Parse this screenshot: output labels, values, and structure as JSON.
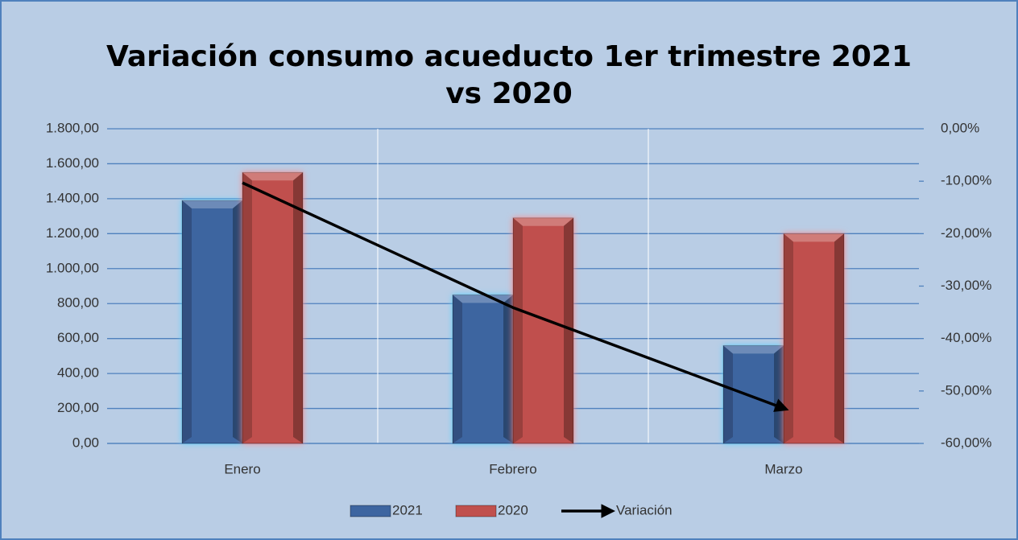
{
  "chart_data": {
    "type": "bar",
    "title": "Variación consumo acueducto 1er trimestre 2021 vs 2020",
    "categories": [
      "Enero",
      "Febrero",
      "Marzo"
    ],
    "series": [
      {
        "name": "2021",
        "color": "#3d65a0",
        "values": [
          1390,
          850,
          560
        ]
      },
      {
        "name": "2020",
        "color": "#c0504d",
        "values": [
          1550,
          1290,
          1200
        ]
      },
      {
        "name": "Variación",
        "type": "line",
        "axis": "y2",
        "color": "#000000",
        "values": [
          -10.3,
          -34.1,
          -53.3
        ]
      }
    ],
    "ylim": [
      0,
      1800
    ],
    "yticks": [
      {
        "value": 0,
        "label": "0,00"
      },
      {
        "value": 200,
        "label": "200,00"
      },
      {
        "value": 400,
        "label": "400,00"
      },
      {
        "value": 600,
        "label": "600,00"
      },
      {
        "value": 800,
        "label": "800,00"
      },
      {
        "value": 1000,
        "label": "1.000,00"
      },
      {
        "value": 1200,
        "label": "1.200,00"
      },
      {
        "value": 1400,
        "label": "1.400,00"
      },
      {
        "value": 1600,
        "label": "1.600,00"
      },
      {
        "value": 1800,
        "label": "1.800,00"
      }
    ],
    "y2lim": [
      -60,
      0
    ],
    "y2ticks": [
      {
        "value": 0,
        "label": "0,00%"
      },
      {
        "value": -10,
        "label": "-10,00%"
      },
      {
        "value": -20,
        "label": "-20,00%"
      },
      {
        "value": -30,
        "label": "-30,00%"
      },
      {
        "value": -40,
        "label": "-40,00%"
      },
      {
        "value": -50,
        "label": "-50,00%"
      },
      {
        "value": -60,
        "label": "-60,00%"
      }
    ],
    "grid": true,
    "legend": "bottom"
  }
}
